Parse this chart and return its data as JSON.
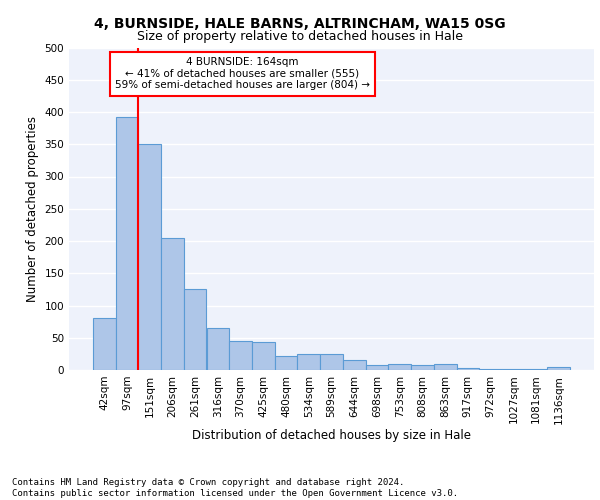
{
  "title1": "4, BURNSIDE, HALE BARNS, ALTRINCHAM, WA15 0SG",
  "title2": "Size of property relative to detached houses in Hale",
  "xlabel": "Distribution of detached houses by size in Hale",
  "ylabel": "Number of detached properties",
  "bar_labels": [
    "42sqm",
    "97sqm",
    "151sqm",
    "206sqm",
    "261sqm",
    "316sqm",
    "370sqm",
    "425sqm",
    "480sqm",
    "534sqm",
    "589sqm",
    "644sqm",
    "698sqm",
    "753sqm",
    "808sqm",
    "863sqm",
    "917sqm",
    "972sqm",
    "1027sqm",
    "1081sqm",
    "1136sqm"
  ],
  "bar_values": [
    80,
    392,
    350,
    205,
    125,
    65,
    45,
    44,
    21,
    25,
    25,
    15,
    8,
    10,
    7,
    10,
    3,
    2,
    2,
    2,
    5
  ],
  "bar_color": "#aec6e8",
  "bar_edge_color": "#5b9bd5",
  "red_line_index": 2,
  "annotation_text": "4 BURNSIDE: 164sqm\n← 41% of detached houses are smaller (555)\n59% of semi-detached houses are larger (804) →",
  "annotation_box_color": "white",
  "annotation_box_edge_color": "red",
  "red_line_color": "red",
  "footer_text": "Contains HM Land Registry data © Crown copyright and database right 2024.\nContains public sector information licensed under the Open Government Licence v3.0.",
  "ylim": [
    0,
    500
  ],
  "yticks": [
    0,
    50,
    100,
    150,
    200,
    250,
    300,
    350,
    400,
    450,
    500
  ],
  "background_color": "#eef2fb",
  "grid_color": "white",
  "title1_fontsize": 10,
  "title2_fontsize": 9,
  "xlabel_fontsize": 8.5,
  "ylabel_fontsize": 8.5,
  "tick_fontsize": 7.5,
  "annotation_fontsize": 7.5,
  "footer_fontsize": 6.5
}
